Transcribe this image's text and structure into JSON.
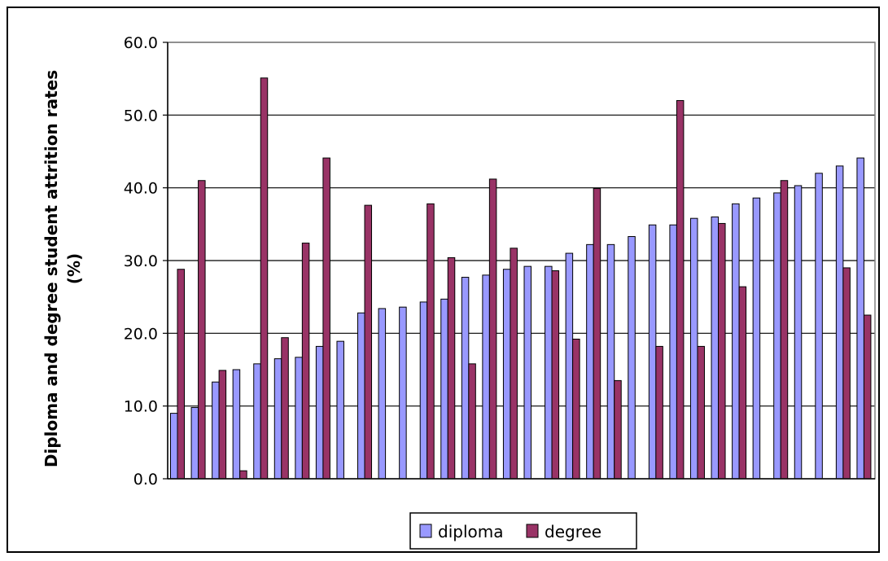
{
  "chart_data": {
    "type": "bar",
    "ylabel": "Diploma and degree student attrition rates (%)",
    "ylabel_lines": [
      "Diploma and degree student attrition rates",
      "(%)"
    ],
    "ylim": [
      0,
      60
    ],
    "yticks": [
      0,
      10,
      20,
      30,
      40,
      50,
      60
    ],
    "ytick_labels": [
      "0.0",
      "10.0",
      "20.0",
      "30.0",
      "40.0",
      "50.0",
      "60.0"
    ],
    "grid": true,
    "legend_position": "bottom",
    "series": [
      {
        "name": "diploma",
        "color": "#9999ff",
        "values": [
          9.0,
          9.8,
          13.3,
          15.0,
          15.8,
          16.5,
          16.7,
          18.2,
          18.9,
          22.8,
          23.4,
          23.6,
          24.3,
          24.7,
          27.7,
          28.0,
          28.8,
          29.2,
          29.2,
          31.0,
          32.2,
          32.2,
          33.3,
          34.9,
          34.9,
          35.8,
          36.0,
          37.8,
          38.6,
          39.3,
          40.3,
          42.0,
          43.0,
          44.1
        ]
      },
      {
        "name": "degree",
        "color": "#993366",
        "values": [
          28.8,
          41.0,
          14.9,
          1.1,
          55.1,
          19.4,
          32.4,
          44.1,
          null,
          37.6,
          null,
          null,
          37.8,
          30.4,
          15.8,
          41.2,
          31.7,
          null,
          28.6,
          19.2,
          39.9,
          13.5,
          null,
          18.2,
          52.0,
          18.2,
          35.1,
          26.4,
          null,
          41.0,
          null,
          null,
          29.0,
          22.5
        ]
      }
    ]
  }
}
